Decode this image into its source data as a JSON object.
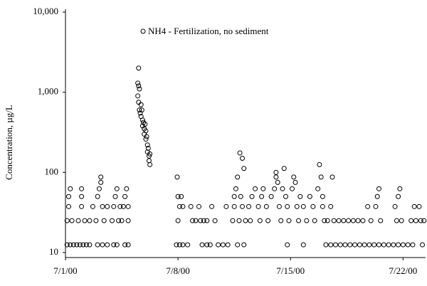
{
  "chart_data": {
    "type": "scatter",
    "ylabel": "Concentration, µg/L",
    "yscale": "log",
    "ylim": [
      10,
      10000
    ],
    "yticks": [
      10,
      100,
      {
        "value": 1000,
        "label": "1,000"
      },
      {
        "value": 10000,
        "label": "10,000"
      }
    ],
    "xlim": [
      0,
      22.4
    ],
    "xticks": [
      {
        "value": 0,
        "label": "7/1/00"
      },
      {
        "value": 7,
        "label": "7/8/00"
      },
      {
        "value": 14,
        "label": "7/15/00"
      },
      {
        "value": 21,
        "label": "7/22/00"
      }
    ],
    "grid": false,
    "legend": "top",
    "series": [
      {
        "name": "NH4 - Fertilization, no sediment",
        "color": "#000000",
        "x": [
          0.1,
          0.3,
          0.5,
          0.7,
          0.9,
          1.1,
          1.3,
          1.5,
          0.1,
          0.2,
          0.2,
          0.3,
          0.4,
          0.8,
          1.0,
          1.0,
          1.0,
          1.2,
          1.5,
          1.7,
          1.9,
          2.0,
          2.1,
          2.2,
          2.2,
          2.3,
          2.4,
          2.6,
          2.0,
          2.3,
          2.6,
          2.9,
          3.0,
          3.1,
          3.2,
          3.3,
          3.4,
          3.5,
          3.6,
          3.7,
          3.8,
          3.9,
          3.9,
          3.0,
          3.2,
          3.7,
          3.9,
          4.55,
          4.5,
          4.55,
          4.6,
          4.5,
          4.55,
          4.6,
          4.65,
          4.7,
          4.7,
          4.75,
          4.8,
          4.8,
          4.85,
          4.9,
          4.9,
          4.95,
          5.0,
          5.0,
          5.05,
          5.1,
          5.1,
          5.15,
          5.2,
          5.2,
          5.25,
          5.25,
          6.95,
          7.0,
          7.1,
          7.2,
          7.3,
          7.0,
          6.9,
          7.1,
          7.3,
          7.6,
          7.8,
          7.9,
          8.1,
          8.3,
          8.4,
          8.6,
          8.8,
          8.5,
          8.8,
          9.0,
          9.1,
          9.3,
          9.5,
          9.8,
          10.0,
          10.1,
          10.4,
          10.5,
          10.5,
          10.6,
          10.7,
          10.7,
          10.8,
          10.85,
          10.9,
          11.0,
          11.0,
          11.1,
          11.2,
          11.1,
          11.4,
          11.5,
          11.6,
          11.8,
          12.0,
          12.1,
          12.2,
          12.3,
          12.5,
          12.6,
          12.8,
          13.0,
          13.1,
          13.1,
          13.2,
          13.3,
          13.4,
          13.5,
          13.6,
          13.7,
          13.8,
          13.9,
          13.8,
          14.1,
          14.2,
          14.3,
          14.4,
          14.5,
          14.6,
          14.8,
          14.8,
          15.0,
          15.2,
          15.4,
          15.5,
          15.7,
          15.8,
          15.9,
          16.0,
          16.0,
          16.1,
          16.2,
          16.5,
          16.8,
          17.1,
          17.4,
          17.7,
          18.0,
          18.3,
          18.6,
          18.9,
          19.2,
          19.5,
          19.8,
          20.1,
          20.4,
          20.7,
          21.0,
          21.3,
          21.6,
          22.2,
          16.3,
          16.5,
          16.6,
          16.7,
          17.0,
          17.3,
          17.6,
          17.9,
          18.2,
          18.5,
          18.8,
          19.0,
          19.3,
          19.4,
          19.5,
          19.6,
          20.5,
          20.6,
          20.7,
          20.8,
          20.9,
          21.5,
          21.7,
          21.8,
          22.0,
          22.1,
          22.3
        ],
        "values": [
          12.5,
          12.5,
          12.5,
          12.5,
          12.5,
          12.5,
          12.5,
          12.5,
          25,
          37.5,
          50,
          62.5,
          25,
          25,
          37.5,
          50,
          62.5,
          25,
          25,
          37.5,
          25,
          50,
          62.5,
          75,
          87.5,
          37.5,
          25,
          37.5,
          12.5,
          12.5,
          12.5,
          25,
          37.5,
          50,
          62.5,
          25,
          37.5,
          25,
          37.5,
          50,
          62.5,
          25,
          37.5,
          12.5,
          12.5,
          12.5,
          12.5,
          2000,
          1300,
          1200,
          1100,
          900,
          750,
          600,
          550,
          700,
          500,
          600,
          450,
          380,
          420,
          350,
          300,
          400,
          330,
          260,
          280,
          220,
          180,
          200,
          160,
          140,
          170,
          125,
          87.5,
          50,
          37.5,
          50,
          37.5,
          25,
          12.5,
          12.5,
          12.5,
          12.5,
          37.5,
          25,
          25,
          37.5,
          25,
          25,
          25,
          12.5,
          12.5,
          12.5,
          37.5,
          25,
          12.5,
          12.5,
          37.5,
          12.5,
          25,
          37.5,
          50,
          62.5,
          87.5,
          12.5,
          25,
          175,
          50,
          150,
          37.5,
          112,
          25,
          12.5,
          37.5,
          25,
          50,
          62.5,
          37.5,
          25,
          50,
          62.5,
          37.5,
          25,
          50,
          62.5,
          87.5,
          100,
          75,
          37.5,
          25,
          62.5,
          112,
          50,
          37.5,
          25,
          12.5,
          62.5,
          87.5,
          75,
          37.5,
          25,
          50,
          12.5,
          37.5,
          25,
          50,
          37.5,
          25,
          62.5,
          125,
          87.5,
          50,
          37.5,
          25,
          12.5,
          12.5,
          12.5,
          12.5,
          12.5,
          12.5,
          12.5,
          12.5,
          12.5,
          12.5,
          12.5,
          12.5,
          12.5,
          12.5,
          12.5,
          12.5,
          12.5,
          12.5,
          12.5,
          12.5,
          25,
          37.5,
          87.5,
          25,
          25,
          25,
          25,
          25,
          25,
          25,
          37.5,
          25,
          37.5,
          50,
          62.5,
          25,
          37.5,
          25,
          50,
          62.5,
          25,
          25,
          37.5,
          25,
          37.5,
          25,
          25
        ]
      }
    ]
  }
}
